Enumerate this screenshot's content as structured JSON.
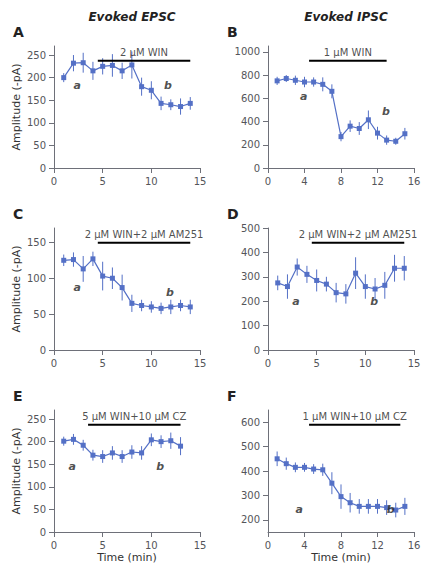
{
  "chart_data": [
    {
      "type": "line",
      "title": "A",
      "subtitle": "Evoked EPSC",
      "ylabel": "Amplitude (-pA)",
      "x": [
        1,
        2,
        3,
        4,
        5,
        6,
        7,
        8,
        9,
        10,
        11,
        12,
        13,
        14
      ],
      "values": [
        200,
        232,
        233,
        215,
        225,
        227,
        215,
        228,
        180,
        172,
        143,
        140,
        136,
        143
      ],
      "yerr": [
        10,
        18,
        22,
        20,
        18,
        25,
        18,
        30,
        20,
        20,
        15,
        12,
        18,
        14
      ],
      "xlim": [
        0,
        15
      ],
      "ylim": [
        0,
        270
      ],
      "xticks": [
        0,
        5,
        10,
        15
      ],
      "yticks": [
        0,
        50,
        100,
        150,
        200,
        250
      ],
      "grid": false,
      "marker": "square",
      "drug_bar": {
        "x": [
          4.5,
          14.0
        ],
        "label": "2 μM WIN"
      },
      "annotations": [
        {
          "text": "a",
          "x": 2.0,
          "y": 170
        },
        {
          "text": "b",
          "x": 11.3,
          "y": 170
        }
      ]
    },
    {
      "type": "line",
      "title": "B",
      "subtitle": "Evoked IPSC",
      "x": [
        1,
        2,
        3,
        4,
        5,
        6,
        7,
        8,
        9,
        10,
        11,
        12,
        13,
        14,
        15
      ],
      "values": [
        750,
        770,
        755,
        740,
        740,
        720,
        660,
        270,
        360,
        340,
        415,
        300,
        240,
        230,
        295
      ],
      "yerr": [
        35,
        30,
        40,
        45,
        40,
        60,
        60,
        40,
        50,
        55,
        80,
        55,
        40,
        30,
        50
      ],
      "xlim": [
        0,
        16
      ],
      "ylim": [
        0,
        1050
      ],
      "xticks": [
        0,
        4,
        8,
        12,
        16
      ],
      "yticks": [
        0,
        200,
        400,
        600,
        800,
        1000
      ],
      "grid": false,
      "marker": "square",
      "drug_bar": {
        "x": [
          4.5,
          13.0
        ],
        "label": "1 μM WIN"
      },
      "annotations": [
        {
          "text": "a",
          "x": 3.5,
          "y": 570
        },
        {
          "text": "b",
          "x": 12.5,
          "y": 440
        }
      ]
    },
    {
      "type": "line",
      "title": "C",
      "ylabel": "Amplitude (-pA)",
      "x": [
        1,
        2,
        3,
        4,
        5,
        6,
        7,
        8,
        9,
        10,
        11,
        12,
        13,
        14
      ],
      "values": [
        125,
        126,
        113,
        127,
        103,
        100,
        87,
        65,
        62,
        60,
        58,
        60,
        62,
        60
      ],
      "yerr": [
        8,
        10,
        18,
        10,
        20,
        15,
        18,
        12,
        8,
        8,
        8,
        10,
        8,
        10
      ],
      "xlim": [
        0,
        15
      ],
      "ylim": [
        0,
        170
      ],
      "xticks": [
        0,
        5,
        10,
        15
      ],
      "yticks": [
        0,
        50,
        100,
        150
      ],
      "grid": false,
      "marker": "square",
      "drug_bar": {
        "x": [
          4.5,
          14.0
        ],
        "label": "2 μM WIN+2 μM AM251"
      },
      "annotations": [
        {
          "text": "a",
          "x": 2.0,
          "y": 80
        },
        {
          "text": "b",
          "x": 11.5,
          "y": 73
        }
      ]
    },
    {
      "type": "line",
      "title": "D",
      "x": [
        1,
        2,
        3,
        4,
        5,
        6,
        7,
        8,
        9,
        10,
        11,
        12,
        13,
        14
      ],
      "values": [
        275,
        260,
        340,
        310,
        285,
        270,
        235,
        230,
        315,
        260,
        250,
        265,
        335,
        335
      ],
      "yerr": [
        30,
        50,
        35,
        35,
        45,
        30,
        40,
        40,
        65,
        50,
        45,
        55,
        55,
        50
      ],
      "xlim": [
        0,
        15
      ],
      "ylim": [
        0,
        500
      ],
      "xticks": [
        0,
        5,
        10,
        15
      ],
      "yticks": [
        0,
        100,
        200,
        300,
        400,
        500
      ],
      "grid": false,
      "marker": "square",
      "drug_bar": {
        "x": [
          4.5,
          14.0
        ],
        "label": "2 μM WIN+2 μM AM251"
      },
      "annotations": [
        {
          "text": "a",
          "x": 2.5,
          "y": 175
        },
        {
          "text": "b",
          "x": 10.5,
          "y": 175
        }
      ]
    },
    {
      "type": "line",
      "title": "E",
      "ylabel": "Amplitude (-pA)",
      "xlabel": "Time (min)",
      "x": [
        1,
        2,
        3,
        4,
        5,
        6,
        7,
        8,
        9,
        10,
        11,
        12,
        13
      ],
      "values": [
        201,
        205,
        192,
        170,
        167,
        175,
        167,
        177,
        175,
        204,
        200,
        202,
        190
      ],
      "yerr": [
        10,
        12,
        12,
        12,
        14,
        15,
        14,
        15,
        15,
        14,
        14,
        18,
        20
      ],
      "xlim": [
        0,
        15
      ],
      "ylim": [
        0,
        270
      ],
      "xticks": [
        0,
        5,
        10,
        15
      ],
      "yticks": [
        0,
        50,
        100,
        150,
        200,
        250
      ],
      "grid": false,
      "marker": "square",
      "drug_bar": {
        "x": [
          3.5,
          13.0
        ],
        "label": "5 μM WIN+10 μM CZ"
      },
      "annotations": [
        {
          "text": "a",
          "x": 1.5,
          "y": 133
        },
        {
          "text": "b",
          "x": 10.5,
          "y": 133
        }
      ]
    },
    {
      "type": "line",
      "title": "F",
      "xlabel": "Time (min)",
      "x": [
        1,
        2,
        3,
        4,
        5,
        6,
        7,
        8,
        9,
        10,
        11,
        12,
        13,
        14,
        15
      ],
      "values": [
        450,
        430,
        415,
        415,
        408,
        405,
        350,
        295,
        270,
        255,
        255,
        255,
        250,
        240,
        255
      ],
      "yerr": [
        30,
        25,
        20,
        18,
        20,
        25,
        45,
        50,
        40,
        30,
        30,
        30,
        30,
        30,
        35
      ],
      "xlim": [
        0,
        16
      ],
      "ylim": [
        150,
        650
      ],
      "xticks": [
        0,
        4,
        8,
        12,
        16
      ],
      "yticks": [
        200,
        300,
        400,
        500,
        600
      ],
      "grid": false,
      "marker": "square",
      "drug_bar": {
        "x": [
          4.5,
          14.5
        ],
        "label": "1 μM WIN+10 μM CZ"
      },
      "annotations": [
        {
          "text": "a",
          "x": 3.0,
          "y": 220
        },
        {
          "text": "b",
          "x": 13.0,
          "y": 220
        }
      ]
    }
  ]
}
